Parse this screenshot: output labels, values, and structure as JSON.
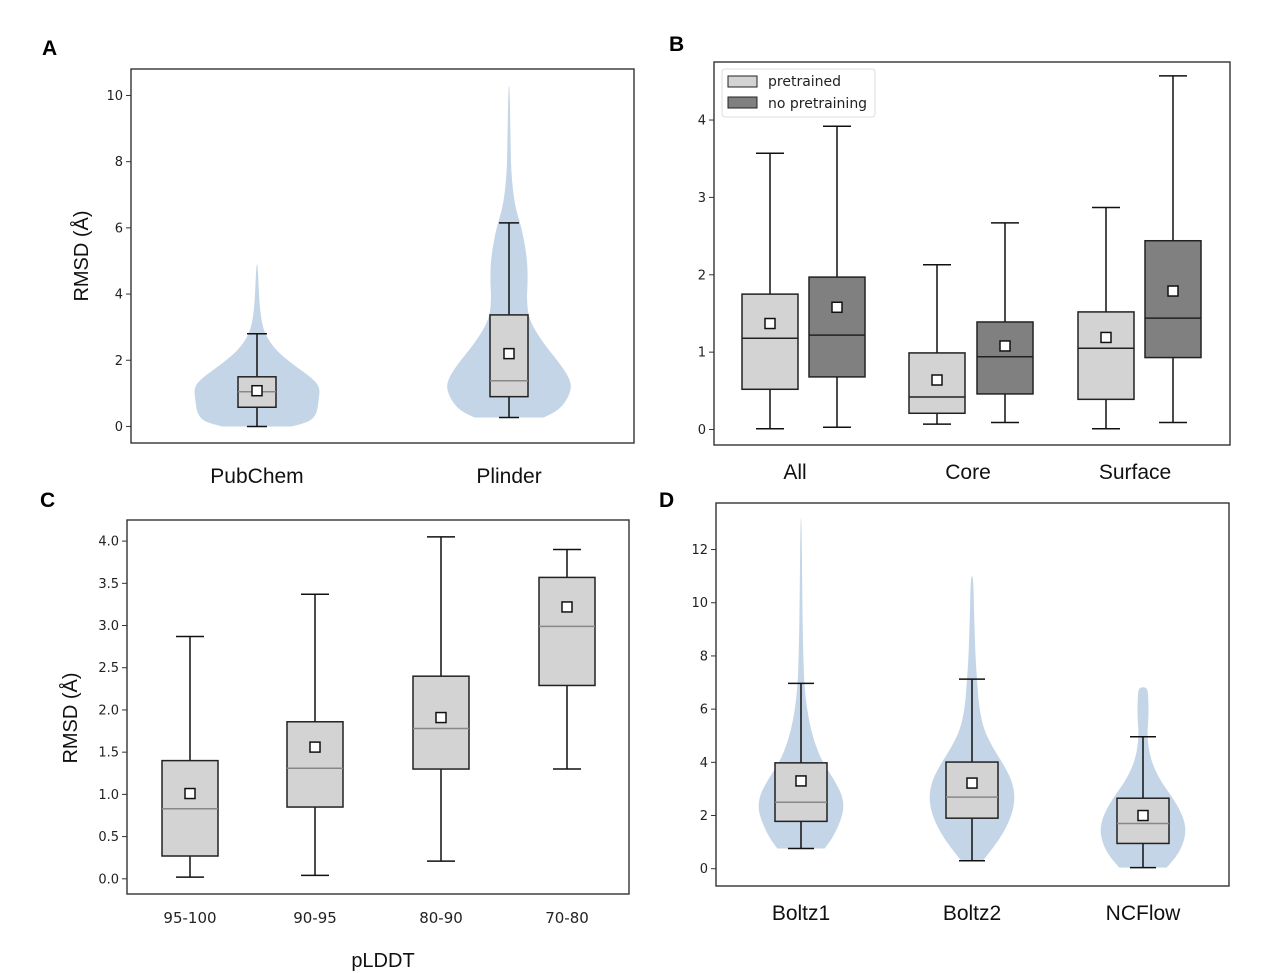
{
  "figure": {
    "panel_letters": [
      "A",
      "B",
      "C",
      "D"
    ]
  },
  "colors": {
    "violin": "#c3d5e6",
    "box_light": "#d3d3d3",
    "box_dark": "#808080",
    "median_on_light_violin": "#888888",
    "median_on_box": "#222222",
    "frame": "#333333"
  },
  "chart_data": [
    {
      "panel": "A",
      "type": "violin+box",
      "title": "",
      "xlabel": "",
      "ylabel": "RMSD (Å)",
      "ylim": [
        -0.5,
        10.8
      ],
      "yticks": [
        0,
        2,
        4,
        6,
        8,
        10
      ],
      "ytick_labels": [
        "0",
        "2",
        "4",
        "6",
        "8",
        "10"
      ],
      "categories": [
        "PubChem",
        "Plinder"
      ],
      "series": [
        {
          "name": "PubChem",
          "box": {
            "whislo": 0.0,
            "q1": 0.58,
            "median": 1.05,
            "q3": 1.5,
            "whishi": 2.8,
            "mean": 1.08
          },
          "violin": {
            "min": 0.0,
            "max": 4.9,
            "profile": [
              [
                0.0,
                0.55
              ],
              [
                0.15,
                0.85
              ],
              [
                0.4,
                0.95
              ],
              [
                0.8,
                0.98
              ],
              [
                1.2,
                1.0
              ],
              [
                1.5,
                0.85
              ],
              [
                1.9,
                0.55
              ],
              [
                2.3,
                0.3
              ],
              [
                2.8,
                0.12
              ],
              [
                3.3,
                0.06
              ],
              [
                4.0,
                0.03
              ],
              [
                4.9,
                0.01
              ]
            ]
          }
        },
        {
          "name": "Plinder",
          "box": {
            "whislo": 0.27,
            "q1": 0.9,
            "median": 1.38,
            "q3": 3.37,
            "whishi": 6.15,
            "mean": 2.2
          },
          "violin": {
            "min": 0.27,
            "max": 10.3,
            "profile": [
              [
                0.27,
                0.55
              ],
              [
                0.5,
                0.8
              ],
              [
                0.9,
                0.95
              ],
              [
                1.3,
                1.0
              ],
              [
                1.8,
                0.85
              ],
              [
                2.5,
                0.55
              ],
              [
                3.2,
                0.32
              ],
              [
                3.8,
                0.28
              ],
              [
                4.5,
                0.3
              ],
              [
                5.2,
                0.28
              ],
              [
                6.0,
                0.2
              ],
              [
                6.6,
                0.1
              ],
              [
                7.5,
                0.04
              ],
              [
                8.5,
                0.025
              ],
              [
                10.3,
                0.01
              ]
            ]
          }
        }
      ],
      "legend": null
    },
    {
      "panel": "B",
      "type": "box",
      "title": "",
      "xlabel": "",
      "ylabel": "",
      "ylim": [
        -0.2,
        4.75
      ],
      "yticks": [
        0,
        1,
        2,
        3,
        4
      ],
      "ytick_labels": [
        "0",
        "1",
        "2",
        "3",
        "4"
      ],
      "categories": [
        "All",
        "Core",
        "Surface"
      ],
      "series": [
        {
          "name": "pretrained",
          "boxes": [
            {
              "whislo": 0.01,
              "q1": 0.52,
              "median": 1.18,
              "q3": 1.75,
              "whishi": 3.57,
              "mean": 1.37
            },
            {
              "whislo": 0.07,
              "q1": 0.21,
              "median": 0.42,
              "q3": 0.99,
              "whishi": 2.13,
              "mean": 0.64
            },
            {
              "whislo": 0.01,
              "q1": 0.39,
              "median": 1.05,
              "q3": 1.52,
              "whishi": 2.87,
              "mean": 1.19
            }
          ]
        },
        {
          "name": "no pretraining",
          "boxes": [
            {
              "whislo": 0.03,
              "q1": 0.68,
              "median": 1.22,
              "q3": 1.97,
              "whishi": 3.92,
              "mean": 1.58
            },
            {
              "whislo": 0.09,
              "q1": 0.46,
              "median": 0.94,
              "q3": 1.39,
              "whishi": 2.67,
              "mean": 1.08
            },
            {
              "whislo": 0.09,
              "q1": 0.93,
              "median": 1.44,
              "q3": 2.44,
              "whishi": 4.57,
              "mean": 1.79
            }
          ]
        }
      ],
      "legend": {
        "position": "top-left",
        "entries": [
          "pretrained",
          "no pretraining"
        ]
      }
    },
    {
      "panel": "C",
      "type": "box",
      "title": "",
      "xlabel": "pLDDT",
      "ylabel": "RMSD (Å)",
      "ylim": [
        -0.18,
        4.25
      ],
      "yticks": [
        0.0,
        0.5,
        1.0,
        1.5,
        2.0,
        2.5,
        3.0,
        3.5,
        4.0
      ],
      "ytick_labels": [
        "0.0",
        "0.5",
        "1.0",
        "1.5",
        "2.0",
        "2.5",
        "3.0",
        "3.5",
        "4.0"
      ],
      "categories": [
        "95-100",
        "90-95",
        "80-90",
        "70-80"
      ],
      "series": [
        {
          "name": "RMSD",
          "boxes": [
            {
              "whislo": 0.02,
              "q1": 0.27,
              "median": 0.83,
              "q3": 1.4,
              "whishi": 2.87,
              "mean": 1.01
            },
            {
              "whislo": 0.04,
              "q1": 0.85,
              "median": 1.31,
              "q3": 1.86,
              "whishi": 3.37,
              "mean": 1.56
            },
            {
              "whislo": 0.21,
              "q1": 1.3,
              "median": 1.78,
              "q3": 2.4,
              "whishi": 4.05,
              "mean": 1.91
            },
            {
              "whislo": 1.3,
              "q1": 2.29,
              "median": 2.99,
              "q3": 3.57,
              "whishi": 3.9,
              "mean": 3.22
            }
          ]
        }
      ],
      "legend": null
    },
    {
      "panel": "D",
      "type": "violin+box",
      "title": "",
      "xlabel": "",
      "ylabel": "",
      "ylim": [
        -0.65,
        13.75
      ],
      "yticks": [
        0,
        2,
        4,
        6,
        8,
        10,
        12
      ],
      "ytick_labels": [
        "0",
        "2",
        "4",
        "6",
        "8",
        "10",
        "12"
      ],
      "categories": [
        "Boltz1",
        "Boltz2",
        "NCFlow"
      ],
      "series": [
        {
          "name": "Boltz1",
          "box": {
            "whislo": 0.76,
            "q1": 1.78,
            "median": 2.5,
            "q3": 3.98,
            "whishi": 6.97,
            "mean": 3.3
          },
          "violin": {
            "min": 0.76,
            "max": 13.2,
            "profile": [
              [
                0.76,
                0.55
              ],
              [
                1.2,
                0.75
              ],
              [
                1.8,
                0.92
              ],
              [
                2.3,
                1.0
              ],
              [
                2.8,
                0.95
              ],
              [
                3.4,
                0.75
              ],
              [
                4.0,
                0.5
              ],
              [
                4.8,
                0.3
              ],
              [
                5.6,
                0.18
              ],
              [
                6.5,
                0.1
              ],
              [
                7.5,
                0.06
              ],
              [
                9.0,
                0.04
              ],
              [
                11.0,
                0.025
              ],
              [
                13.2,
                0.01
              ]
            ]
          }
        },
        {
          "name": "Boltz2",
          "box": {
            "whislo": 0.3,
            "q1": 1.9,
            "median": 2.69,
            "q3": 4.01,
            "whishi": 7.13,
            "mean": 3.22
          },
          "violin": {
            "min": 0.3,
            "max": 11.0,
            "profile": [
              [
                0.3,
                0.25
              ],
              [
                0.8,
                0.5
              ],
              [
                1.4,
                0.75
              ],
              [
                2.0,
                0.92
              ],
              [
                2.6,
                1.0
              ],
              [
                3.2,
                0.95
              ],
              [
                3.8,
                0.78
              ],
              [
                4.5,
                0.5
              ],
              [
                5.2,
                0.28
              ],
              [
                6.0,
                0.17
              ],
              [
                7.0,
                0.12
              ],
              [
                8.0,
                0.08
              ],
              [
                9.5,
                0.05
              ],
              [
                11.0,
                0.03
              ]
            ]
          }
        },
        {
          "name": "NCFlow",
          "box": {
            "whislo": 0.04,
            "q1": 0.95,
            "median": 1.7,
            "q3": 2.65,
            "whishi": 4.96,
            "mean": 2.0
          },
          "violin": {
            "min": 0.04,
            "max": 6.82,
            "profile": [
              [
                0.04,
                0.55
              ],
              [
                0.5,
                0.8
              ],
              [
                1.0,
                0.95
              ],
              [
                1.5,
                1.0
              ],
              [
                2.0,
                0.92
              ],
              [
                2.6,
                0.72
              ],
              [
                3.2,
                0.45
              ],
              [
                3.8,
                0.25
              ],
              [
                4.4,
                0.14
              ],
              [
                5.0,
                0.1
              ],
              [
                5.5,
                0.12
              ],
              [
                6.0,
                0.13
              ],
              [
                6.5,
                0.12
              ],
              [
                6.82,
                0.1
              ]
            ]
          }
        }
      ],
      "legend": null
    }
  ]
}
